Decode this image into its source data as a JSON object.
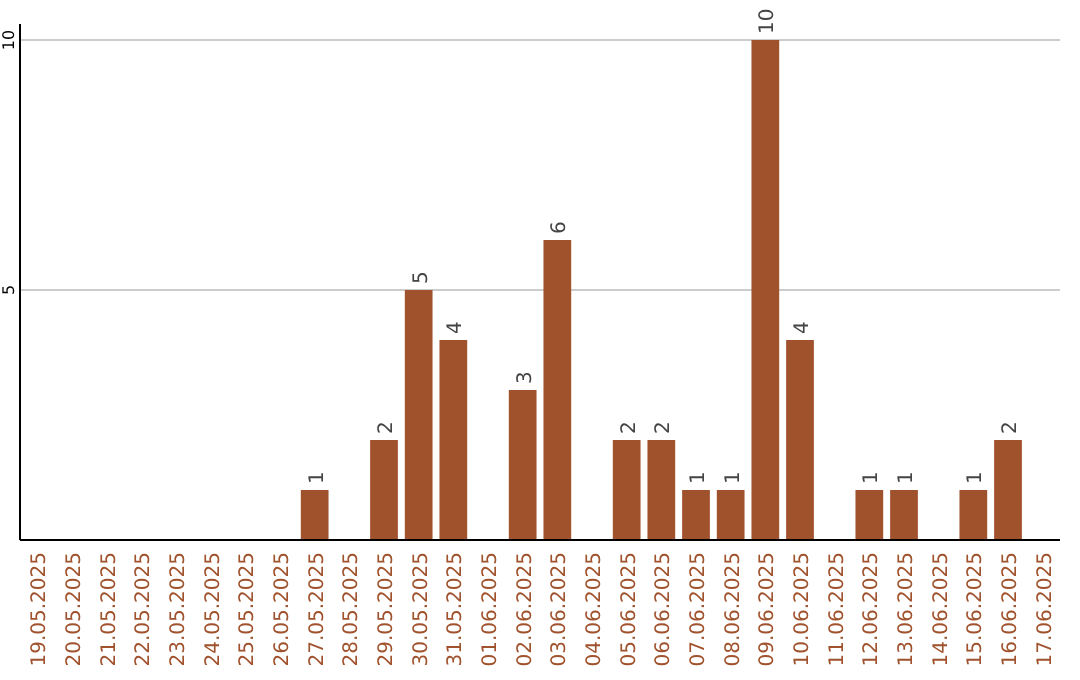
{
  "chart_data": {
    "type": "bar",
    "categories": [
      "19.05.2025",
      "20.05.2025",
      "21.05.2025",
      "22.05.2025",
      "23.05.2025",
      "24.05.2025",
      "25.05.2025",
      "26.05.2025",
      "27.05.2025",
      "28.05.2025",
      "29.05.2025",
      "30.05.2025",
      "31.05.2025",
      "01.06.2025",
      "02.06.2025",
      "03.06.2025",
      "04.06.2025",
      "05.06.2025",
      "06.06.2025",
      "07.06.2025",
      "08.06.2025",
      "09.06.2025",
      "10.06.2025",
      "11.06.2025",
      "12.06.2025",
      "13.06.2025",
      "14.06.2025",
      "15.06.2025",
      "16.06.2025",
      "17.06.2025"
    ],
    "values": [
      0,
      0,
      0,
      0,
      0,
      0,
      0,
      0,
      1,
      0,
      2,
      5,
      4,
      0,
      3,
      6,
      0,
      2,
      2,
      1,
      1,
      10,
      4,
      0,
      1,
      1,
      0,
      1,
      2,
      0
    ],
    "value_labels": [
      null,
      null,
      null,
      null,
      null,
      null,
      null,
      null,
      "1",
      null,
      "2",
      "5",
      "4",
      null,
      "3",
      "6",
      null,
      "2",
      "2",
      "1",
      "1",
      "10",
      "4",
      null,
      "1",
      "1",
      null,
      "1",
      "2",
      null
    ],
    "color": "#a0522d",
    "ylim": [
      0,
      10
    ],
    "yticks": [
      5,
      10
    ],
    "grid": "y"
  }
}
